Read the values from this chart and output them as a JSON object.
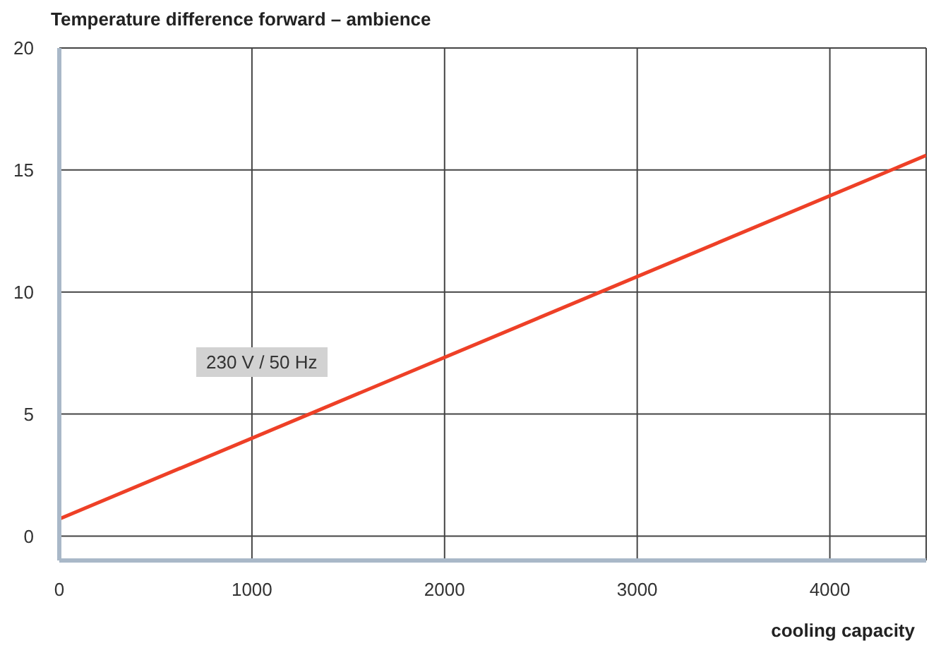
{
  "chart_data": {
    "type": "line",
    "title": "Temperature difference forward – ambience",
    "xlabel": "cooling capacity",
    "x": [
      0,
      4500
    ],
    "series": [
      {
        "color": "#ee4027",
        "values": [
          0.7,
          15.6
        ]
      }
    ],
    "xlim": [
      0,
      4500
    ],
    "xticks": [
      0,
      1000,
      2000,
      3000,
      4000
    ],
    "ylim": [
      -1,
      20
    ],
    "yticks": [
      0,
      5,
      10,
      15,
      20
    ],
    "grid": true,
    "marker": "none",
    "line_style": "solid",
    "annotations": [
      "230 V / 50 Hz"
    ]
  }
}
